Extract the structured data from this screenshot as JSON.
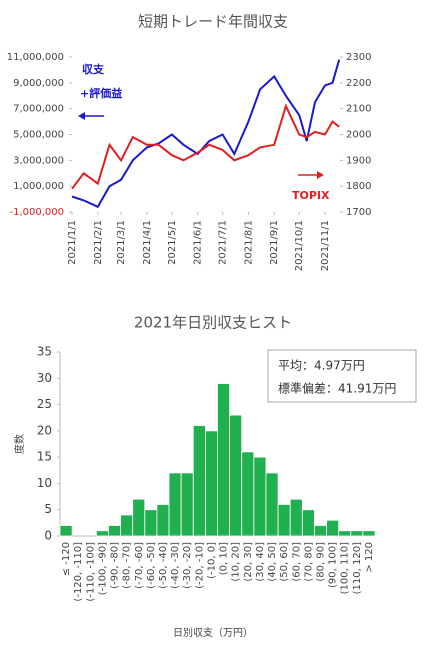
{
  "chart_data": [
    {
      "type": "line",
      "title": "短期トレード年間収支",
      "x": [
        "2021/1/1",
        "2021/1/15",
        "2021/2/1",
        "2021/2/15",
        "2021/3/1",
        "2021/3/15",
        "2021/4/1",
        "2021/4/15",
        "2021/5/1",
        "2021/5/15",
        "2021/6/1",
        "2021/6/15",
        "2021/7/1",
        "2021/7/15",
        "2021/8/1",
        "2021/8/15",
        "2021/9/1",
        "2021/9/15",
        "2021/10/1",
        "2021/10/10",
        "2021/10/20",
        "2021/11/1",
        "2021/11/10",
        "2021/11/18"
      ],
      "series": [
        {
          "color": "#1a1acd",
          "values": [
            200000,
            -100000,
            -600000,
            1000000,
            1500000,
            3000000,
            4000000,
            4300000,
            5000000,
            4200000,
            3500000,
            4500000,
            5000000,
            3500000,
            6000000,
            8500000,
            9500000,
            8000000,
            6500000,
            4500000,
            7500000,
            8800000,
            9000000,
            10800000
          ]
        },
        {
          "color": "#e02020",
          "axis": "y2",
          "values": [
            1790,
            1850,
            1810,
            1960,
            1900,
            1990,
            1960,
            1960,
            1920,
            1900,
            1930,
            1960,
            1940,
            1900,
            1920,
            1950,
            1960,
            2110,
            2000,
            1990,
            2010,
            2000,
            2050,
            2030
          ]
        }
      ],
      "xlim": [
        "2021/1/1",
        "2021/11/19"
      ],
      "xticks": [
        "2021/1/1",
        "2021/2/1",
        "2021/3/1",
        "2021/4/1",
        "2021/5/1",
        "2021/6/1",
        "2021/7/1",
        "2021/8/1",
        "2021/9/1",
        "2021/10/1",
        "2021/11/1"
      ],
      "ylim": [
        -1000000,
        11000000
      ],
      "yticks": [
        {
          "value": -1000000,
          "label": "-1,000,000"
        },
        {
          "value": 1000000,
          "label": "1,000,000"
        },
        {
          "value": 3000000,
          "label": "3,000,000"
        },
        {
          "value": 5000000,
          "label": "5,000,000"
        },
        {
          "value": 7000000,
          "label": "7,000,000"
        },
        {
          "value": 9000000,
          "label": "9,000,000"
        },
        {
          "value": 11000000,
          "label": "11,000,000"
        }
      ],
      "negative_tick_color": "#e02020",
      "y2lim": [
        1700,
        2300
      ],
      "y2ticks": [
        1700,
        1800,
        1900,
        2000,
        2100,
        2200,
        2300
      ],
      "annotations": [
        "収支",
        "+評価益",
        "TOPIX"
      ]
    },
    {
      "type": "bar",
      "title": "2021年日別収支ヒスト",
      "categories": [
        "≤ -120",
        "(-120, -110]",
        "(-110, -100]",
        "(-100, -90]",
        "(-90, -80]",
        "(-80, -70]",
        "(-70, -60]",
        "(-60, -50]",
        "(-50, -40]",
        "(-40, -30]",
        "(-30, -20]",
        "(-20, -10]",
        "(-10, 0]",
        "(0, 10]",
        "(10, 20]",
        "(20, 30]",
        "(30, 40]",
        "(40, 50]",
        "(50, 60]",
        "(60, 70]",
        "(70, 80]",
        "(80, 90]",
        "(90, 100]",
        "(100, 110]",
        "(110, 120]",
        "> 120"
      ],
      "values": [
        2,
        0,
        0,
        1,
        2,
        4,
        7,
        5,
        6,
        12,
        12,
        21,
        20,
        29,
        23,
        16,
        15,
        12,
        6,
        7,
        5,
        2,
        3,
        1,
        1,
        1
      ],
      "color": "#20b050",
      "ylim": [
        0,
        35
      ],
      "yticks": [
        0,
        5,
        10,
        15,
        20,
        25,
        30,
        35
      ],
      "ylabel": "度数",
      "xlabel": "日別収支（万円）",
      "stats": [
        "平均：4.97万円",
        "標準偏差：41.91万円"
      ]
    }
  ]
}
